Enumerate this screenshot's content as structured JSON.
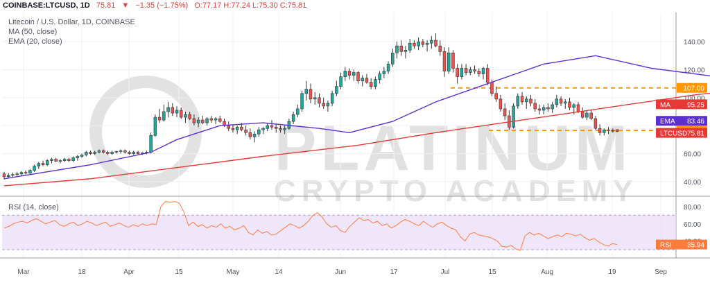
{
  "header": {
    "symbol": "COINBASE:LTCUSD, 1D",
    "last": "75.81",
    "change": "−1.35 (−1.75%)",
    "ohlc": "O:77.17 H:77.24 L:75.30 C:75.81"
  },
  "legend": {
    "title": "Litecoin / U.S. Dollar, 1D, COINBASE",
    "ma": "MA (50, close)",
    "ema": "EMA (20, close)"
  },
  "rsi_title": "RSI (14, close)",
  "watermark": "PLATINUM CRYPTO ACADEMY",
  "colors": {
    "up": "#26a69a",
    "down": "#ef5350",
    "ma": "#e53935",
    "ema": "#5c2fd3",
    "level": "#ff9800",
    "rsi": "#ff7a3d"
  },
  "chart_data": [
    {
      "type": "candlestick",
      "ylim": [
        30,
        150
      ],
      "yticks": [
        40,
        60,
        80,
        100,
        120,
        140
      ],
      "x_tick_labels": [
        "Mar",
        "18",
        "Apr",
        "15",
        "May",
        "14",
        "Jun",
        "17",
        "Jul",
        "15",
        "Aug",
        "19",
        "Sep"
      ],
      "horizontal_levels": [
        107.0,
        76.63
      ],
      "price_labels": [
        {
          "label": "107.00",
          "value": 107.0
        },
        {
          "label": "MA",
          "text": "95.25",
          "value": 95.25
        },
        {
          "label": "EMA",
          "text": "83.46",
          "value": 83.46
        },
        {
          "label": "76.63",
          "value": 76.63
        },
        {
          "label": "LTCUSD",
          "text": "75.81",
          "value": 75.81
        }
      ],
      "candles": [
        [
          45.5,
          47,
          41.5,
          43.5
        ],
        [
          43.5,
          46,
          42.5,
          44.5
        ],
        [
          44.5,
          46.5,
          43,
          45
        ],
        [
          45,
          47,
          43.5,
          45.5
        ],
        [
          45.5,
          47.5,
          44,
          46.5
        ],
        [
          46.5,
          48,
          45,
          46
        ],
        [
          46,
          49,
          45.5,
          48
        ],
        [
          48,
          52,
          47,
          51
        ],
        [
          51,
          54,
          49,
          53
        ],
        [
          53,
          55,
          51,
          52
        ],
        [
          52,
          56,
          51,
          55
        ],
        [
          55,
          57,
          53,
          56
        ],
        [
          56,
          57,
          54,
          54.5
        ],
        [
          54.5,
          56,
          53,
          55
        ],
        [
          55,
          57,
          54,
          56
        ],
        [
          56,
          57,
          54,
          55
        ],
        [
          55,
          58,
          54,
          57
        ],
        [
          57,
          59,
          55,
          58
        ],
        [
          58,
          60,
          57,
          59
        ],
        [
          59,
          62,
          58,
          61
        ],
        [
          61,
          62,
          59,
          60
        ],
        [
          60,
          62,
          59,
          61
        ],
        [
          61,
          63,
          60,
          62
        ],
        [
          62,
          63,
          60,
          61
        ],
        [
          61,
          62,
          59,
          60
        ],
        [
          60,
          62,
          59,
          61
        ],
        [
          61,
          62,
          60,
          61.5
        ],
        [
          61.5,
          63,
          60,
          62
        ],
        [
          62,
          63,
          60,
          61
        ],
        [
          61,
          62,
          59,
          60
        ],
        [
          60,
          62,
          59,
          61
        ],
        [
          61,
          62,
          59.5,
          60
        ],
        [
          60,
          61,
          59,
          60.5
        ],
        [
          60.5,
          62,
          59.5,
          61
        ],
        [
          61,
          75,
          60,
          73
        ],
        [
          73,
          88,
          72,
          86
        ],
        [
          86,
          92,
          82,
          84
        ],
        [
          84,
          95,
          83,
          90
        ],
        [
          90,
          97,
          86,
          93
        ],
        [
          93,
          96,
          87,
          89
        ],
        [
          89,
          94,
          86,
          91
        ],
        [
          91,
          93,
          85,
          86
        ],
        [
          86,
          90,
          82,
          88
        ],
        [
          88,
          90,
          84,
          85
        ],
        [
          85,
          88,
          80,
          82
        ],
        [
          82,
          86,
          79,
          84
        ],
        [
          84,
          87,
          81,
          82
        ],
        [
          82,
          86,
          80,
          85
        ],
        [
          85,
          87,
          82,
          84
        ],
        [
          84,
          86,
          81,
          85
        ],
        [
          85,
          87,
          82,
          83
        ],
        [
          83,
          85,
          79,
          80
        ],
        [
          80,
          83,
          76,
          78
        ],
        [
          78,
          81,
          75,
          77
        ],
        [
          77,
          80,
          74,
          79
        ],
        [
          79,
          82,
          76,
          77
        ],
        [
          77,
          80,
          73,
          75
        ],
        [
          75,
          78,
          70,
          72
        ],
        [
          72,
          76,
          68,
          74
        ],
        [
          74,
          79,
          72,
          77
        ],
        [
          77,
          79,
          74,
          78
        ],
        [
          78,
          82,
          76,
          80
        ],
        [
          80,
          84,
          77,
          79
        ],
        [
          79,
          81,
          75,
          78
        ],
        [
          78,
          80,
          75,
          77
        ],
        [
          77,
          80,
          74,
          78
        ],
        [
          78,
          85,
          77,
          83
        ],
        [
          83,
          90,
          81,
          88
        ],
        [
          88,
          95,
          86,
          92
        ],
        [
          92,
          105,
          90,
          103
        ],
        [
          103,
          112,
          98,
          106
        ],
        [
          106,
          110,
          96,
          99
        ],
        [
          99,
          104,
          95,
          100
        ],
        [
          100,
          103,
          93,
          96
        ],
        [
          96,
          100,
          92,
          94
        ],
        [
          94,
          98,
          90,
          96
        ],
        [
          96,
          105,
          94,
          103
        ],
        [
          103,
          112,
          101,
          108
        ],
        [
          108,
          118,
          106,
          115
        ],
        [
          115,
          122,
          112,
          119
        ],
        [
          119,
          121,
          113,
          116
        ],
        [
          116,
          120,
          112,
          118
        ],
        [
          118,
          119,
          110,
          112
        ],
        [
          112,
          116,
          108,
          114
        ],
        [
          114,
          117,
          110,
          111
        ],
        [
          111,
          114,
          106,
          108
        ],
        [
          108,
          115,
          106,
          113
        ],
        [
          113,
          119,
          110,
          117
        ],
        [
          117,
          122,
          114,
          119
        ],
        [
          119,
          126,
          117,
          124
        ],
        [
          124,
          135,
          122,
          132
        ],
        [
          132,
          140,
          128,
          137
        ],
        [
          137,
          141,
          130,
          133
        ],
        [
          133,
          137,
          128,
          134
        ],
        [
          134,
          142,
          132,
          139
        ],
        [
          139,
          141,
          135,
          137
        ],
        [
          137,
          143,
          134,
          140
        ],
        [
          140,
          142,
          136,
          138
        ],
        [
          138,
          141,
          133,
          139
        ],
        [
          139,
          144,
          135,
          141
        ],
        [
          141,
          146,
          136,
          137
        ],
        [
          137,
          141,
          130,
          133
        ],
        [
          133,
          136,
          115,
          119
        ],
        [
          119,
          136,
          117,
          132
        ],
        [
          132,
          134,
          118,
          121
        ],
        [
          121,
          124,
          110,
          115
        ],
        [
          115,
          124,
          113,
          121
        ],
        [
          121,
          124,
          116,
          118
        ],
        [
          118,
          122,
          116,
          120
        ],
        [
          120,
          123,
          117,
          119
        ],
        [
          119,
          121,
          115,
          117
        ],
        [
          117,
          122,
          113,
          121
        ],
        [
          121,
          124,
          109,
          111
        ],
        [
          111,
          113,
          101,
          103
        ],
        [
          103,
          108,
          97,
          99
        ],
        [
          99,
          102,
          90,
          92
        ],
        [
          92,
          96,
          84,
          87
        ],
        [
          87,
          91,
          77,
          79
        ],
        [
          79,
          96,
          78,
          94
        ],
        [
          94,
          103,
          92,
          101
        ],
        [
          101,
          104,
          95,
          97
        ],
        [
          97,
          101,
          92,
          99
        ],
        [
          99,
          102,
          94,
          96
        ],
        [
          96,
          99,
          90,
          92
        ],
        [
          92,
          95,
          88,
          91
        ],
        [
          91,
          95,
          88,
          93
        ],
        [
          93,
          96,
          90,
          92
        ],
        [
          92,
          97,
          89,
          95
        ],
        [
          95,
          102,
          93,
          99
        ],
        [
          99,
          101,
          94,
          96
        ],
        [
          96,
          99,
          92,
          97
        ],
        [
          97,
          100,
          91,
          93
        ],
        [
          93,
          96,
          88,
          95
        ],
        [
          95,
          97,
          89,
          90
        ],
        [
          90,
          93,
          85,
          86
        ],
        [
          86,
          91,
          84,
          89
        ],
        [
          89,
          91,
          84,
          85
        ],
        [
          85,
          87,
          77,
          78
        ],
        [
          78,
          81,
          73,
          75
        ],
        [
          75,
          78,
          73,
          77
        ],
        [
          77,
          79,
          74,
          76.5
        ],
        [
          76.5,
          78,
          75,
          76
        ],
        [
          77.17,
          77.24,
          75.3,
          75.81
        ]
      ],
      "ma_line": [
        [
          0,
          37
        ],
        [
          20,
          42
        ],
        [
          40,
          50
        ],
        [
          60,
          58
        ],
        [
          82,
          66
        ],
        [
          100,
          75
        ],
        [
          120,
          84
        ],
        [
          140,
          93
        ],
        [
          160,
          102
        ],
        [
          175,
          107
        ],
        [
          190,
          111
        ],
        [
          200,
          113
        ],
        [
          220,
          115
        ],
        [
          240,
          114
        ],
        [
          255,
          112
        ],
        [
          275,
          109
        ],
        [
          295,
          106
        ],
        [
          312,
          103
        ],
        [
          326,
          98
        ],
        [
          338,
          95
        ]
      ],
      "ema_line": [
        [
          0,
          42
        ],
        [
          20,
          52
        ],
        [
          34,
          61
        ],
        [
          40,
          70
        ],
        [
          50,
          80
        ],
        [
          60,
          82
        ],
        [
          73,
          78
        ],
        [
          80,
          75
        ],
        [
          90,
          83
        ],
        [
          100,
          97
        ],
        [
          112,
          110
        ],
        [
          125,
          124
        ],
        [
          137,
          130
        ],
        [
          150,
          121
        ],
        [
          160,
          117
        ],
        [
          170,
          113
        ],
        [
          180,
          106
        ],
        [
          200,
          100
        ],
        [
          220,
          94
        ],
        [
          238,
          90
        ],
        [
          255,
          86
        ],
        [
          268,
          83.5
        ],
        [
          275,
          83
        ]
      ]
    },
    {
      "type": "line",
      "title": "RSI (14, close)",
      "ylim": [
        30,
        85
      ],
      "yticks": [
        40,
        60,
        80
      ],
      "band": [
        30,
        70
      ],
      "last": "35.94",
      "values": [
        55,
        57,
        60,
        62,
        63,
        61,
        64,
        66,
        63,
        60,
        62,
        64,
        59,
        57,
        60,
        62,
        58,
        60,
        63,
        61,
        58,
        60,
        62,
        57,
        59,
        61,
        58,
        56,
        59,
        57,
        60,
        58,
        60,
        59,
        80,
        86,
        85,
        86,
        84,
        74,
        58,
        62,
        57,
        59,
        55,
        58,
        56,
        60,
        55,
        57,
        53,
        55,
        58,
        50,
        47,
        53,
        49,
        51,
        47,
        48,
        52,
        56,
        60,
        58,
        55,
        58,
        63,
        70,
        73,
        68,
        60,
        56,
        58,
        52,
        50,
        57,
        62,
        67,
        64,
        65,
        61,
        63,
        58,
        60,
        55,
        58,
        62,
        65,
        63,
        60,
        58,
        63,
        59,
        56,
        60,
        62,
        58,
        55,
        53,
        45,
        40,
        48,
        50,
        47,
        46,
        45,
        43,
        40,
        34,
        33,
        35,
        31,
        29,
        46,
        50,
        47,
        49,
        46,
        43,
        45,
        47,
        45,
        49,
        48,
        46,
        48,
        44,
        41,
        43,
        39,
        36,
        34,
        37,
        36
      ]
    }
  ]
}
